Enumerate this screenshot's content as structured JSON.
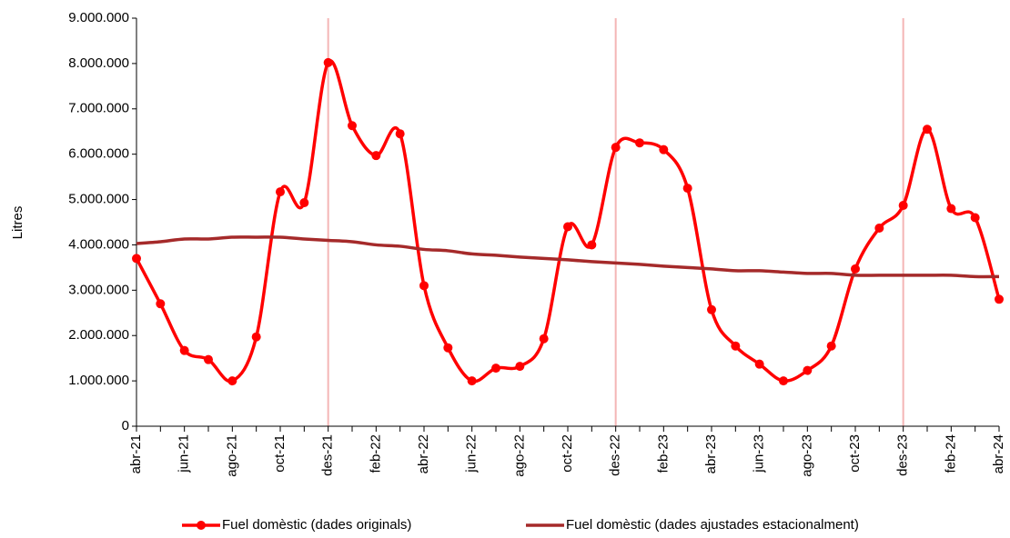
{
  "chart_data": {
    "type": "line",
    "y_label": "Litres",
    "categories": [
      "abr-21",
      null,
      "jun-21",
      null,
      "ago-21",
      null,
      "oct-21",
      null,
      "des-21",
      null,
      "feb-22",
      null,
      "abr-22",
      null,
      "jun-22",
      null,
      "ago-22",
      null,
      "oct-22",
      null,
      "des-22",
      null,
      "feb-23",
      null,
      "abr-23",
      null,
      "jun-23",
      null,
      "ago-23",
      null,
      "oct-23",
      null,
      "des-23",
      null,
      "feb-24",
      null,
      "abr-24"
    ],
    "series": [
      {
        "name": "Fuel domèstic (dades originals)",
        "color": "#ff0000",
        "markers": true,
        "values": [
          3700000,
          2700000,
          1670000,
          1470000,
          1000000,
          1970000,
          5170000,
          4930000,
          8020000,
          6630000,
          5970000,
          6450000,
          3100000,
          1730000,
          1000000,
          1280000,
          1320000,
          1930000,
          4400000,
          4000000,
          6150000,
          6250000,
          6100000,
          5250000,
          2570000,
          1770000,
          1370000,
          1000000,
          1230000,
          1770000,
          3470000,
          4370000,
          4870000,
          6550000,
          4800000,
          4600000,
          2800000
        ]
      },
      {
        "name": "Fuel domèstic (dades ajustades estacionalment)",
        "color": "#a52a2a",
        "markers": false,
        "values": [
          4030000,
          4070000,
          4130000,
          4130000,
          4170000,
          4170000,
          4170000,
          4130000,
          4100000,
          4070000,
          4000000,
          3970000,
          3900000,
          3870000,
          3800000,
          3770000,
          3730000,
          3700000,
          3670000,
          3630000,
          3600000,
          3570000,
          3530000,
          3500000,
          3470000,
          3430000,
          3430000,
          3400000,
          3370000,
          3370000,
          3330000,
          3330000,
          3330000,
          3330000,
          3330000,
          3300000,
          3300000
        ]
      }
    ],
    "highlight_categories": [
      "des-21",
      "des-22",
      "des-23"
    ],
    "highlight_color": "#f4b6b6",
    "smooth": true,
    "ylim": [
      0,
      9000000
    ],
    "yticks": [
      0,
      {
        "value": 1000000,
        "label": "1.000.000"
      },
      {
        "value": 2000000,
        "label": "2.000.000"
      },
      {
        "value": 3000000,
        "label": "3.000.000"
      },
      {
        "value": 4000000,
        "label": "4.000.000"
      },
      {
        "value": 5000000,
        "label": "5.000.000"
      },
      {
        "value": 6000000,
        "label": "6.000.000"
      },
      {
        "value": 7000000,
        "label": "7.000.000"
      },
      {
        "value": 8000000,
        "label": "8.000.000"
      },
      {
        "value": 9000000,
        "label": "9.000.000"
      }
    ],
    "grid": false,
    "legend": "bottom"
  }
}
